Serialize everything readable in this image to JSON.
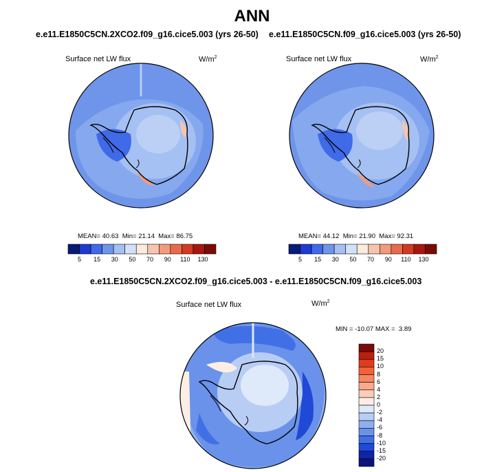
{
  "title": "ANN",
  "colors": {
    "land_outline": "#000000",
    "map_outline": "#000000"
  },
  "panels": [
    {
      "case": "e.e11.E1850C5CN.2XCO2.f09_g16.cice5.003 (yrs 26-50)",
      "variable": "Surface net LW flux",
      "units": "W/m",
      "units_exp": "2",
      "stats": {
        "mean_label": "MEAN=",
        "mean": "40.63",
        "min_label": "Min=",
        "min": "21.14",
        "max_label": "Max=",
        "max": "86.75"
      }
    },
    {
      "case": "e.e11.E1850C5CN.f09_g16.cice5.003 (yrs 26-50)",
      "variable": "Surface net LW flux",
      "units": "W/m",
      "units_exp": "2",
      "stats": {
        "mean_label": "MEAN=",
        "mean": "44.12",
        "min_label": "Min=",
        "min": "21.90",
        "max_label": "Max=",
        "max": "92.31"
      }
    }
  ],
  "abs_colorbar": {
    "ticks": [
      "5",
      "15",
      "30",
      "50",
      "70",
      "90",
      "110",
      "130"
    ],
    "colors": [
      "#0a1a78",
      "#1d3bd0",
      "#3f6ae8",
      "#6f95ea",
      "#a5c0f2",
      "#d3e1f8",
      "#fbeade",
      "#f6c4ae",
      "#f29b7d",
      "#e96b4b",
      "#d23b22",
      "#a8170f",
      "#7a0a06"
    ]
  },
  "diff_panel": {
    "title": "e.e11.E1850C5CN.2XCO2.f09_g16.cice5.003 - e.e11.E1850C5CN.f09_g16.cice5.003",
    "variable": "Surface net LW flux",
    "units": "W/m",
    "units_exp": "2",
    "stats": {
      "min_label": "MIN =",
      "min": "-10.07",
      "max_label": "MAX =",
      "max": "3.89"
    }
  },
  "diff_colorbar": {
    "ticks": [
      "20",
      "15",
      "10",
      "8",
      "6",
      "4",
      "2",
      "0",
      "-2",
      "-4",
      "-6",
      "-8",
      "-10",
      "-15",
      "-20"
    ],
    "colors": [
      "#7a0a06",
      "#b8200f",
      "#e03c1c",
      "#f2613a",
      "#f58861",
      "#f7ab8c",
      "#f9cdb7",
      "#fdeee4",
      "#deeafa",
      "#b8cdf4",
      "#8fb0ee",
      "#6a92ea",
      "#4170e6",
      "#2049d8",
      "#1024a8",
      "#0a147a"
    ]
  }
}
